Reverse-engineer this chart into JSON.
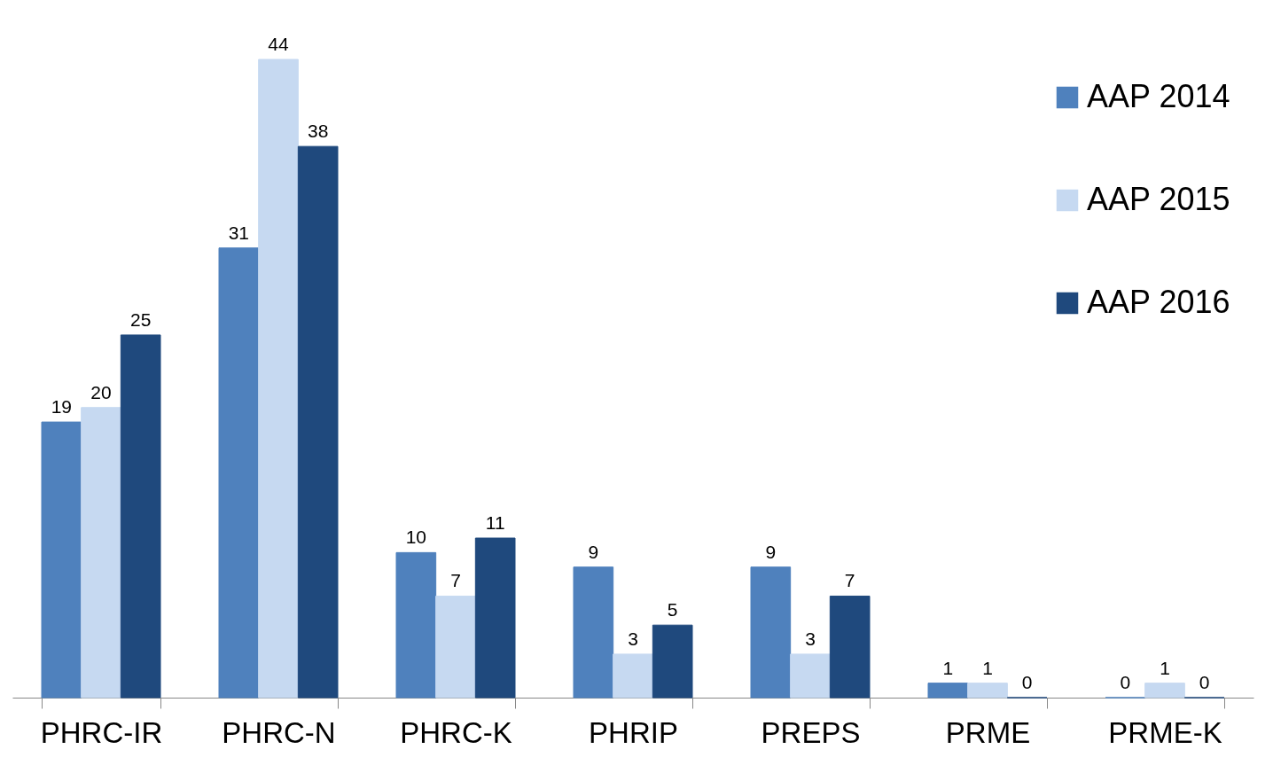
{
  "chart_data": {
    "type": "bar",
    "categories": [
      "PHRC-IR",
      "PHRC-N",
      "PHRC-K",
      "PHRIP",
      "PREPS",
      "PRME",
      "PRME-K"
    ],
    "series": [
      {
        "name": "AAP 2014",
        "color": "#4f81bd",
        "values": [
          19,
          31,
          10,
          9,
          9,
          1,
          0
        ]
      },
      {
        "name": "AAP 2015",
        "color": "#c6d9f1",
        "values": [
          20,
          44,
          7,
          3,
          3,
          1,
          1
        ]
      },
      {
        "name": "AAP 2016",
        "color": "#1f497d",
        "values": [
          25,
          38,
          11,
          5,
          7,
          0,
          0
        ]
      }
    ],
    "data_labels": true,
    "legend": "top right",
    "grid": false
  }
}
